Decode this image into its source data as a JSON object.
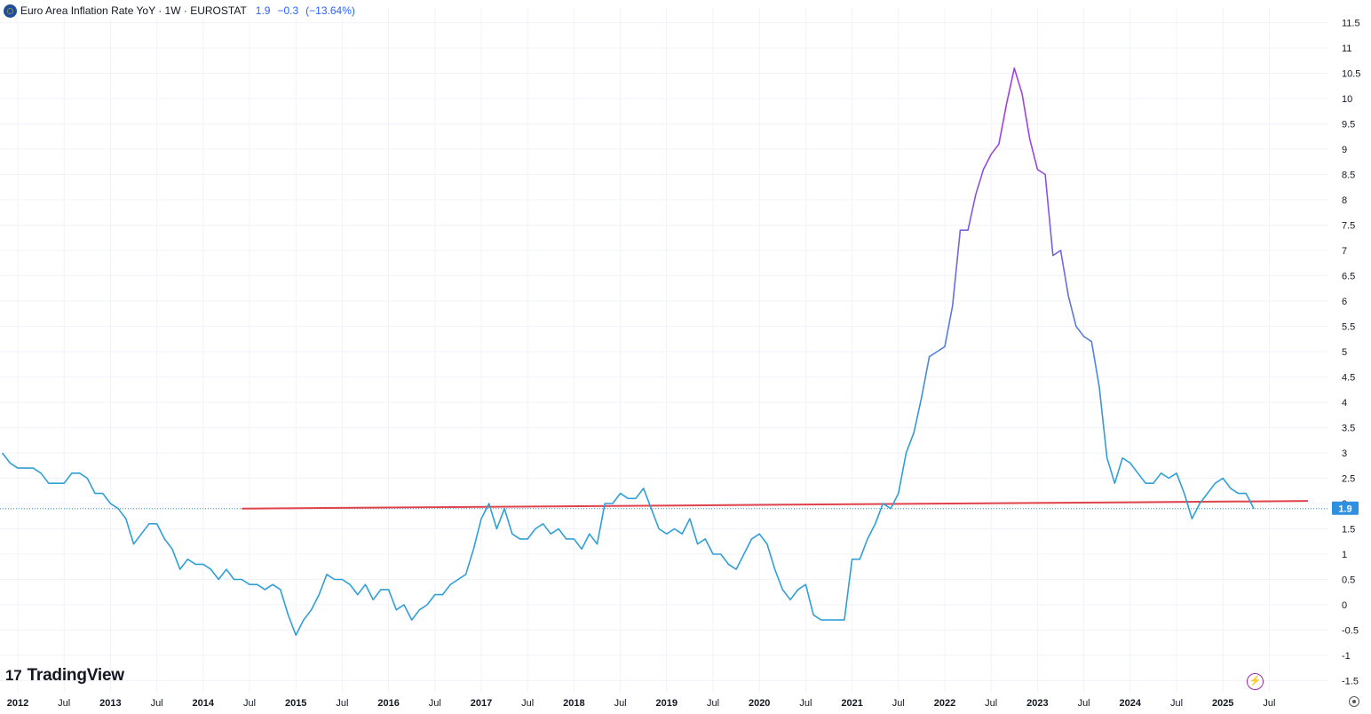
{
  "header": {
    "title": "Euro Area Inflation Rate YoY · 1W · EUROSTAT",
    "value": "1.9",
    "change": "−0.3",
    "change_pct": "(−13.64%)"
  },
  "branding": {
    "logo_mark": "17",
    "logo_text": "TradingView"
  },
  "icons": {
    "symbol": "eu-flag-icon",
    "bolt": "lightning-icon",
    "settings": "gear-icon"
  },
  "colors": {
    "line_low": "#2f9fd8",
    "line_high": "#a040e0",
    "trendline": "#e0434c",
    "last_value_label": "#2f8fe0",
    "grid": "#f0f3fa"
  },
  "chart_data": {
    "type": "line",
    "title": "Euro Area Inflation Rate YoY",
    "y_axis": {
      "ticks": [
        "-1.5",
        "-1",
        "-0.5",
        "0",
        "0.5",
        "1",
        "1.5",
        "2",
        "2.5",
        "3",
        "3.5",
        "4",
        "4.5",
        "5",
        "5.5",
        "6",
        "6.5",
        "7",
        "7.5",
        "8",
        "8.5",
        "9",
        "9.5",
        "10",
        "10.5",
        "11",
        "11.5"
      ],
      "range": [
        -1.5,
        11.5
      ],
      "position": "right"
    },
    "x_axis": {
      "ticks": [
        "2012",
        "Jul",
        "2013",
        "Jul",
        "2014",
        "Jul",
        "2015",
        "Jul",
        "2016",
        "Jul",
        "2017",
        "Jul",
        "2018",
        "Jul",
        "2019",
        "Jul",
        "2020",
        "Jul",
        "2021",
        "Jul",
        "2022",
        "Jul",
        "2023",
        "Jul",
        "2024",
        "Jul",
        "2025",
        "Jul"
      ],
      "range": [
        "2011-11",
        "2025-12"
      ]
    },
    "last_value_label": "1.9",
    "series": [
      {
        "x": [
          "2011-11",
          "2011-12",
          "2012-01",
          "2012-02",
          "2012-03",
          "2012-04",
          "2012-05",
          "2012-06",
          "2012-07",
          "2012-08",
          "2012-09",
          "2012-10",
          "2012-11",
          "2012-12",
          "2013-01",
          "2013-02",
          "2013-03",
          "2013-04",
          "2013-05",
          "2013-06",
          "2013-07",
          "2013-08",
          "2013-09",
          "2013-10",
          "2013-11",
          "2013-12",
          "2014-01",
          "2014-02",
          "2014-03",
          "2014-04",
          "2014-05",
          "2014-06",
          "2014-07",
          "2014-08",
          "2014-09",
          "2014-10",
          "2014-11",
          "2014-12",
          "2015-01",
          "2015-02",
          "2015-03",
          "2015-04",
          "2015-05",
          "2015-06",
          "2015-07",
          "2015-08",
          "2015-09",
          "2015-10",
          "2015-11",
          "2015-12",
          "2016-01",
          "2016-02",
          "2016-03",
          "2016-04",
          "2016-05",
          "2016-06",
          "2016-07",
          "2016-08",
          "2016-09",
          "2016-10",
          "2016-11",
          "2016-12",
          "2017-01",
          "2017-02",
          "2017-03",
          "2017-04",
          "2017-05",
          "2017-06",
          "2017-07",
          "2017-08",
          "2017-09",
          "2017-10",
          "2017-11",
          "2017-12",
          "2018-01",
          "2018-02",
          "2018-03",
          "2018-04",
          "2018-05",
          "2018-06",
          "2018-07",
          "2018-08",
          "2018-09",
          "2018-10",
          "2018-11",
          "2018-12",
          "2019-01",
          "2019-02",
          "2019-03",
          "2019-04",
          "2019-05",
          "2019-06",
          "2019-07",
          "2019-08",
          "2019-09",
          "2019-10",
          "2019-11",
          "2019-12",
          "2020-01",
          "2020-02",
          "2020-03",
          "2020-04",
          "2020-05",
          "2020-06",
          "2020-07",
          "2020-08",
          "2020-09",
          "2020-10",
          "2020-11",
          "2020-12",
          "2021-01",
          "2021-02",
          "2021-03",
          "2021-04",
          "2021-05",
          "2021-06",
          "2021-07",
          "2021-08",
          "2021-09",
          "2021-10",
          "2021-11",
          "2021-12",
          "2022-01",
          "2022-02",
          "2022-03",
          "2022-04",
          "2022-05",
          "2022-06",
          "2022-07",
          "2022-08",
          "2022-09",
          "2022-10",
          "2022-11",
          "2022-12",
          "2023-01",
          "2023-02",
          "2023-03",
          "2023-04",
          "2023-05",
          "2023-06",
          "2023-07",
          "2023-08",
          "2023-09",
          "2023-10",
          "2023-11",
          "2023-12",
          "2024-01",
          "2024-02",
          "2024-03",
          "2024-04",
          "2024-05",
          "2024-06",
          "2024-07",
          "2024-08",
          "2024-09",
          "2024-10",
          "2024-11",
          "2024-12",
          "2025-01",
          "2025-02",
          "2025-03",
          "2025-04",
          "2025-05"
        ],
        "values": [
          3.0,
          2.8,
          2.7,
          2.7,
          2.7,
          2.6,
          2.4,
          2.4,
          2.4,
          2.6,
          2.6,
          2.5,
          2.2,
          2.2,
          2.0,
          1.9,
          1.7,
          1.2,
          1.4,
          1.6,
          1.6,
          1.3,
          1.1,
          0.7,
          0.9,
          0.8,
          0.8,
          0.7,
          0.5,
          0.7,
          0.5,
          0.5,
          0.4,
          0.4,
          0.3,
          0.4,
          0.3,
          -0.2,
          -0.6,
          -0.3,
          -0.1,
          0.2,
          0.6,
          0.5,
          0.5,
          0.4,
          0.2,
          0.4,
          0.1,
          0.3,
          0.3,
          -0.1,
          0.0,
          -0.3,
          -0.1,
          0.0,
          0.2,
          0.2,
          0.4,
          0.5,
          0.6,
          1.1,
          1.7,
          2.0,
          1.5,
          1.9,
          1.4,
          1.3,
          1.3,
          1.5,
          1.6,
          1.4,
          1.5,
          1.3,
          1.3,
          1.1,
          1.4,
          1.2,
          2.0,
          2.0,
          2.2,
          2.1,
          2.1,
          2.3,
          1.9,
          1.5,
          1.4,
          1.5,
          1.4,
          1.7,
          1.2,
          1.3,
          1.0,
          1.0,
          0.8,
          0.7,
          1.0,
          1.3,
          1.4,
          1.2,
          0.7,
          0.3,
          0.1,
          0.3,
          0.4,
          -0.2,
          -0.3,
          -0.3,
          -0.3,
          -0.3,
          0.9,
          0.9,
          1.3,
          1.6,
          2.0,
          1.9,
          2.2,
          3.0,
          3.4,
          4.1,
          4.9,
          5.0,
          5.1,
          5.9,
          7.4,
          7.4,
          8.1,
          8.6,
          8.9,
          9.1,
          9.9,
          10.6,
          10.1,
          9.2,
          8.6,
          8.5,
          6.9,
          7.0,
          6.1,
          5.5,
          5.3,
          5.2,
          4.3,
          2.9,
          2.4,
          2.9,
          2.8,
          2.6,
          2.4,
          2.4,
          2.6,
          2.5,
          2.6,
          2.2,
          1.7,
          2.0,
          2.2,
          2.4,
          2.5,
          2.3,
          2.2,
          2.2,
          1.9
        ]
      }
    ],
    "trendline": {
      "from": {
        "x": "2014-06",
        "y": 1.9
      },
      "to": {
        "x": "2025-12",
        "y": 2.05
      }
    }
  }
}
